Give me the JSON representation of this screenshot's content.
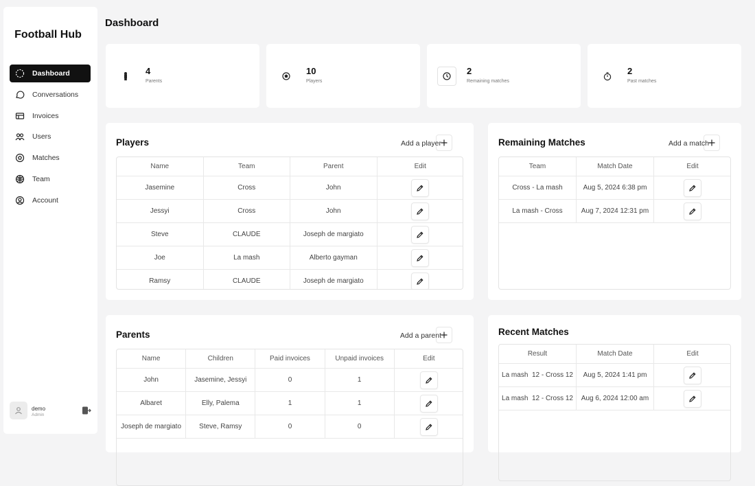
{
  "sidebar": {
    "brand": "Football Hub",
    "nav": [
      "Dashboard",
      "Conversations",
      "Invoices",
      "Users",
      "Matches",
      "Team",
      "Account"
    ],
    "active": 0,
    "user": {
      "name": "demo",
      "role": "Admin"
    }
  },
  "header": {
    "title": "Dashboard"
  },
  "stats": [
    {
      "value": 4,
      "label": "Parents"
    },
    {
      "value": 10,
      "label": "Players"
    },
    {
      "value": 2,
      "label": "Remaining matches"
    },
    {
      "value": 2,
      "label": "Past matches"
    }
  ],
  "players": {
    "title": "Players",
    "action": "Add a player",
    "columns": [
      "Name",
      "Team",
      "Parent",
      "Edit"
    ],
    "rows": [
      [
        "Jasemine",
        "Cross",
        "John"
      ],
      [
        "Jessyi",
        "Cross",
        "John"
      ],
      [
        "Steve",
        "CLAUDE",
        "Joseph de margiato"
      ],
      [
        "Joe",
        "La mash",
        "Alberto gayman"
      ],
      [
        "Ramsy",
        "CLAUDE",
        "Joseph de margiato"
      ]
    ]
  },
  "remaining_matches": {
    "title": "Remaining Matches",
    "action": "Add a match",
    "columns": [
      "Team",
      "Match Date",
      "Edit"
    ],
    "rows": [
      [
        "Cross - La mash",
        "Aug 5, 2024 6:38 pm"
      ],
      [
        "La mash - Cross",
        "Aug 7, 2024 12:31 pm"
      ]
    ]
  },
  "parents": {
    "title": "Parents",
    "action": "Add a parent",
    "columns": [
      "Name",
      "Children",
      "Paid invoices",
      "Unpaid invoices",
      "Edit"
    ],
    "rows": [
      [
        "John",
        "Jasemine, Jessyi",
        0,
        1
      ],
      [
        "Albaret",
        "Elly, Palema",
        1,
        1
      ],
      [
        "Joseph de margiato",
        "Steve, Ramsy",
        0,
        0
      ]
    ]
  },
  "recent_matches": {
    "title": "Recent Matches",
    "columns": [
      "Result",
      "Match Date",
      "Edit"
    ],
    "rows": [
      [
        "La mash  12 - Cross 12",
        "Aug 5, 2024 1:41 pm"
      ],
      [
        "La mash  12 - Cross 12",
        "Aug 6, 2024 12:00 am"
      ]
    ]
  }
}
